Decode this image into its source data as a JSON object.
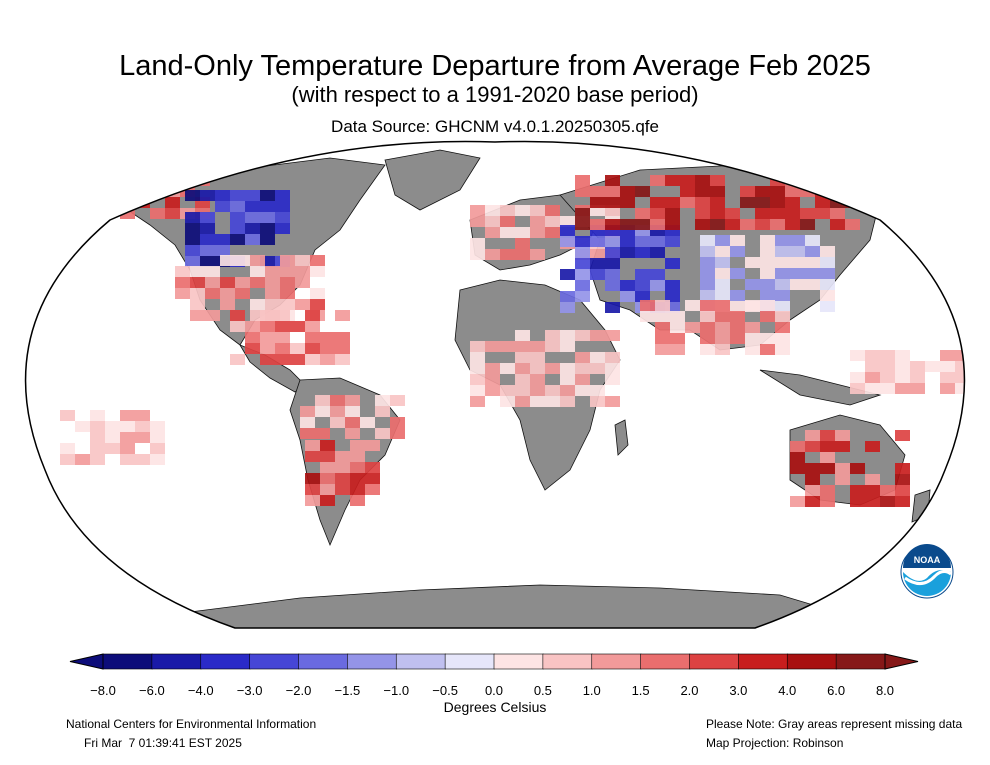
{
  "header": {
    "title": "Land-Only Temperature Departure from Average Feb 2025",
    "subtitle": "(with respect to a 1991-2020 base period)",
    "source": "Data Source: GHCNM v4.0.1.20250305.qfe"
  },
  "logo": {
    "text": "NOAA",
    "colors": {
      "top": "#0a4a8c",
      "bottom": "#1aa0dc",
      "ring": "#ffffff"
    }
  },
  "legend": {
    "unit_label": "Degrees Celsius",
    "ticks": [
      "−8.0",
      "−6.0",
      "−4.0",
      "−3.0",
      "−2.0",
      "−1.5",
      "−1.0",
      "−0.5",
      "0.0",
      "0.5",
      "1.0",
      "1.5",
      "2.0",
      "3.0",
      "4.0",
      "6.0",
      "8.0"
    ],
    "colors": [
      "#0d0d7a",
      "#1a1aa8",
      "#2a2ac8",
      "#4646d6",
      "#6a6ae0",
      "#9494e8",
      "#c0c0f0",
      "#e6e6fa",
      "#fde4e4",
      "#f9c4c4",
      "#f29a9a",
      "#ea6e6e",
      "#dd4242",
      "#c81e1e",
      "#a81010",
      "#861818"
    ],
    "missing_color": "#8c8c8c"
  },
  "footer": {
    "org": "National Centers for Environmental Information",
    "timestamp": "Fri Mar  7 01:39:41 EST 2025",
    "note": "Please Note: Gray areas represent missing data",
    "projection": "Map Projection: Robinson"
  }
}
